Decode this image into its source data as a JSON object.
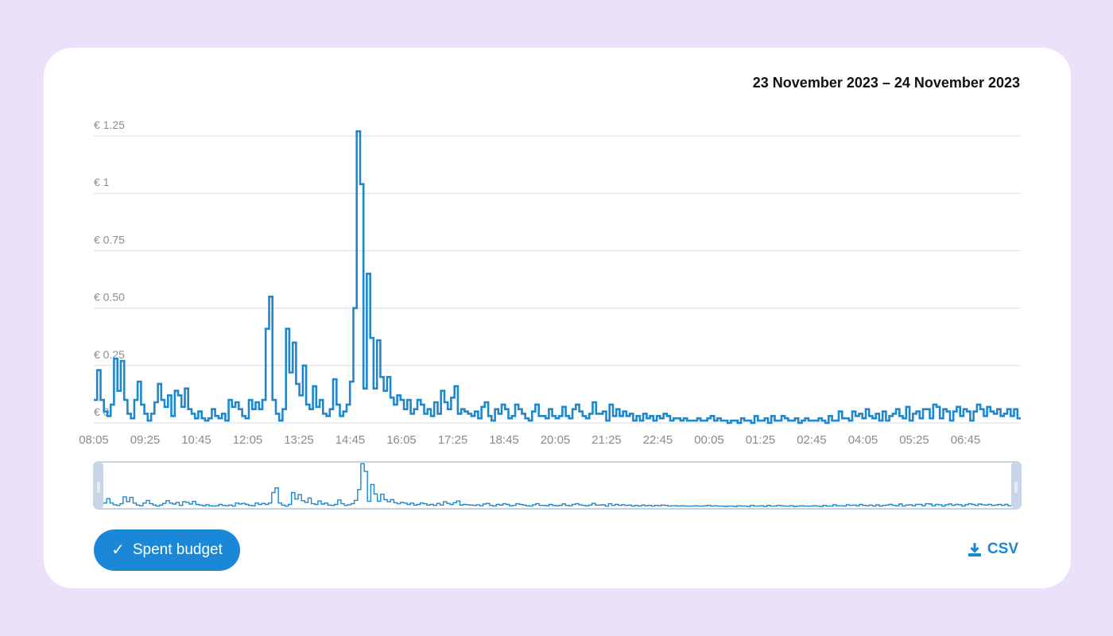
{
  "colors": {
    "background": "#ece1fb",
    "card": "#ffffff",
    "line": "#1f87cc",
    "button": "#1a88d6",
    "grid": "#dcdcdc"
  },
  "header": {
    "date_range": "23 November 2023 – 24 November 2023"
  },
  "chart_data": {
    "type": "line",
    "step": true,
    "title": "",
    "xlabel": "",
    "ylabel": "",
    "ylim": [
      0,
      1.25
    ],
    "y_ticks": [
      {
        "value": 0,
        "label": "€ 0"
      },
      {
        "value": 0.25,
        "label": "€ 0.25"
      },
      {
        "value": 0.5,
        "label": "€ 0.50"
      },
      {
        "value": 0.75,
        "label": "€ 0.75"
      },
      {
        "value": 1,
        "label": "€ 1"
      },
      {
        "value": 1.25,
        "label": "€ 1.25"
      }
    ],
    "x_ticks": [
      "08:05",
      "09:25",
      "10:45",
      "12:05",
      "13:25",
      "14:45",
      "16:05",
      "17:25",
      "18:45",
      "20:05",
      "21:25",
      "22:45",
      "00:05",
      "01:25",
      "02:45",
      "04:05",
      "05:25",
      "06:45"
    ],
    "series": [
      {
        "values": [
          0.1,
          0.23,
          0.1,
          0.05,
          0.03,
          0.08,
          0.28,
          0.14,
          0.27,
          0.1,
          0.04,
          0.02,
          0.1,
          0.18,
          0.08,
          0.04,
          0.01,
          0.04,
          0.09,
          0.17,
          0.1,
          0.07,
          0.12,
          0.03,
          0.14,
          0.12,
          0.07,
          0.15,
          0.06,
          0.04,
          0.02,
          0.05,
          0.02,
          0.01,
          0.02,
          0.06,
          0.03,
          0.02,
          0.04,
          0.01,
          0.1,
          0.07,
          0.09,
          0.06,
          0.03,
          0.02,
          0.1,
          0.06,
          0.09,
          0.06,
          0.1,
          0.41,
          0.55,
          0.1,
          0.04,
          0.01,
          0.06,
          0.41,
          0.22,
          0.35,
          0.17,
          0.12,
          0.25,
          0.08,
          0.06,
          0.16,
          0.07,
          0.1,
          0.04,
          0.03,
          0.06,
          0.19,
          0.08,
          0.03,
          0.05,
          0.08,
          0.18,
          0.5,
          1.27,
          1.04,
          0.15,
          0.65,
          0.37,
          0.15,
          0.36,
          0.2,
          0.14,
          0.2,
          0.11,
          0.08,
          0.12,
          0.1,
          0.06,
          0.1,
          0.04,
          0.06,
          0.1,
          0.08,
          0.04,
          0.06,
          0.03,
          0.09,
          0.04,
          0.14,
          0.09,
          0.06,
          0.11,
          0.16,
          0.04,
          0.06,
          0.05,
          0.04,
          0.03,
          0.05,
          0.02,
          0.07,
          0.09,
          0.03,
          0.01,
          0.06,
          0.04,
          0.08,
          0.06,
          0.02,
          0.03,
          0.08,
          0.06,
          0.04,
          0.02,
          0.01,
          0.05,
          0.08,
          0.03,
          0.03,
          0.02,
          0.06,
          0.03,
          0.02,
          0.03,
          0.07,
          0.03,
          0.02,
          0.06,
          0.08,
          0.05,
          0.03,
          0.02,
          0.04,
          0.09,
          0.04,
          0.04,
          0.05,
          0.01,
          0.08,
          0.03,
          0.06,
          0.03,
          0.05,
          0.03,
          0.04,
          0.01,
          0.03,
          0.01,
          0.04,
          0.02,
          0.03,
          0.01,
          0.03,
          0.02,
          0.04,
          0.03,
          0.01,
          0.02,
          0.02,
          0.01,
          0.02,
          0.01,
          0.01,
          0.01,
          0.02,
          0.01,
          0.01,
          0.02,
          0.03,
          0.01,
          0.02,
          0.01,
          0.01,
          0.0,
          0.01,
          0.01,
          0.0,
          0.02,
          0.01,
          0.01,
          0.0,
          0.03,
          0.01,
          0.01,
          0.02,
          0.0,
          0.03,
          0.01,
          0.01,
          0.03,
          0.02,
          0.01,
          0.01,
          0.02,
          0.0,
          0.01,
          0.02,
          0.01,
          0.01,
          0.01,
          0.02,
          0.01,
          0.0,
          0.03,
          0.01,
          0.01,
          0.05,
          0.02,
          0.02,
          0.01,
          0.05,
          0.03,
          0.04,
          0.02,
          0.06,
          0.03,
          0.02,
          0.04,
          0.01,
          0.05,
          0.01,
          0.03,
          0.04,
          0.06,
          0.03,
          0.02,
          0.07,
          0.01,
          0.04,
          0.05,
          0.02,
          0.06,
          0.06,
          0.02,
          0.08,
          0.07,
          0.02,
          0.06,
          0.05,
          0.01,
          0.05,
          0.07,
          0.03,
          0.06,
          0.05,
          0.01,
          0.05,
          0.08,
          0.06,
          0.03,
          0.07,
          0.05,
          0.04,
          0.06,
          0.03,
          0.04,
          0.06,
          0.03,
          0.06,
          0.02
        ]
      }
    ]
  },
  "navigator": {
    "left_handle": "‖",
    "right_handle": "‖"
  },
  "actions": {
    "spent_budget_label": "Spent budget",
    "spent_budget_check": "✓",
    "csv_label": "CSV"
  }
}
